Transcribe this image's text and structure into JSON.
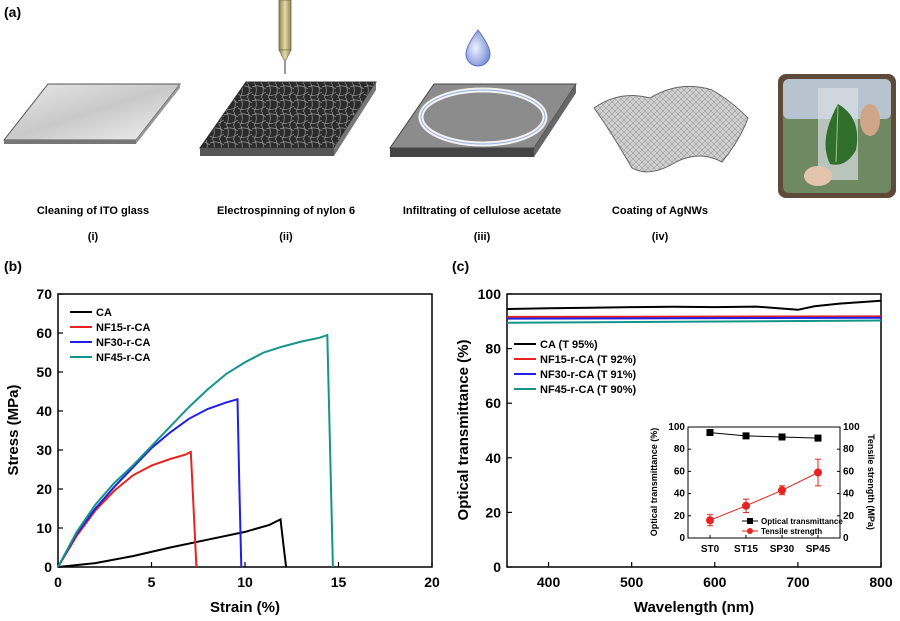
{
  "panels": {
    "a": "(a)",
    "b": "(b)",
    "c": "(c)"
  },
  "steps": [
    {
      "caption": "Cleaning of ITO glass",
      "num": "(i)"
    },
    {
      "caption": "Electrospinning of nylon 6",
      "num": "(ii)"
    },
    {
      "caption": "Infiltrating of cellulose acetate",
      "num": "(iii)"
    },
    {
      "caption": "Coating of AgNWs",
      "num": "(iv)"
    }
  ],
  "colors": {
    "CA": "#000000",
    "NF15": "#e8231f",
    "NF30": "#1f1fe8",
    "NF45": "#15948a"
  },
  "chart_data": [
    {
      "type": "line",
      "xlabel": "Strain (%)",
      "ylabel": "Stress (MPa)",
      "xlim": [
        0,
        20
      ],
      "ylim": [
        0,
        70
      ],
      "xticks": [
        0,
        5,
        10,
        15,
        20
      ],
      "yticks": [
        0,
        10,
        20,
        30,
        40,
        50,
        60,
        70
      ],
      "legend_position": "top-left",
      "series": [
        {
          "name": "CA",
          "color": "#000000",
          "x": [
            0,
            2,
            4,
            6,
            8,
            10,
            11.3,
            11.9,
            12.05,
            12.2
          ],
          "y": [
            0,
            1,
            2.8,
            5,
            7,
            9,
            10.8,
            12.2,
            6,
            0
          ]
        },
        {
          "name": "NF15-r-CA",
          "color": "#e8231f",
          "x": [
            0,
            1,
            2,
            3,
            4,
            5,
            6,
            6.8,
            7.1,
            7.25,
            7.4
          ],
          "y": [
            0,
            8,
            14.5,
            19.5,
            23.5,
            26,
            27.7,
            28.8,
            29.5,
            15,
            0
          ]
        },
        {
          "name": "NF30-r-CA",
          "color": "#1f1fe8",
          "x": [
            0,
            1,
            2,
            3,
            4,
            5,
            6,
            7,
            8,
            9,
            9.6,
            9.7,
            9.8
          ],
          "y": [
            0,
            8.5,
            15,
            20.5,
            25.5,
            30.5,
            34.5,
            38,
            40.5,
            42.2,
            43,
            20,
            0
          ]
        },
        {
          "name": "NF45-r-CA",
          "color": "#15948a",
          "x": [
            0,
            1,
            2,
            3,
            4,
            5,
            6,
            7,
            8,
            9,
            10,
            11,
            12,
            13,
            14,
            14.4,
            14.55,
            14.7
          ],
          "y": [
            0,
            9,
            16,
            21.5,
            26,
            31,
            36,
            41,
            45.5,
            49.5,
            52.5,
            55,
            56.5,
            57.8,
            58.8,
            59.5,
            30,
            0
          ]
        }
      ]
    },
    {
      "type": "line",
      "xlabel": "Wavelength (nm)",
      "ylabel": "Optical transmittance (%)",
      "xlim": [
        350,
        800
      ],
      "ylim": [
        0,
        100
      ],
      "xticks": [
        400,
        500,
        600,
        700,
        800
      ],
      "yticks": [
        0,
        20,
        40,
        60,
        80,
        100
      ],
      "legend_position": "center-left",
      "series": [
        {
          "name": "CA (T 95%)",
          "color": "#000000",
          "x": [
            350,
            400,
            450,
            500,
            550,
            600,
            650,
            700,
            720,
            750,
            800
          ],
          "y": [
            94.5,
            94.8,
            95,
            95.2,
            95.3,
            95.2,
            95.4,
            94.2,
            95.5,
            96.5,
            97.5
          ]
        },
        {
          "name": "NF15-r-CA (T 92%)",
          "color": "#e8231f",
          "x": [
            350,
            800
          ],
          "y": [
            91.6,
            91.8
          ]
        },
        {
          "name": "NF30-r-CA (T 91%)",
          "color": "#1f1fe8",
          "x": [
            350,
            800
          ],
          "y": [
            91.0,
            91.3
          ]
        },
        {
          "name": "NF45-r-CA (T 90%)",
          "color": "#15948a",
          "x": [
            350,
            800
          ],
          "y": [
            89.5,
            90.3
          ]
        }
      ]
    },
    {
      "type": "line",
      "categories": [
        "ST0",
        "ST15",
        "SP30",
        "SP45"
      ],
      "ylabel": "Optical transmittance (%)",
      "y2label": "Tensile strength (MPa)",
      "ylim": [
        0,
        100
      ],
      "y2lim": [
        0,
        100
      ],
      "yticks": [
        0,
        20,
        40,
        60,
        80,
        100
      ],
      "legend_position": "bottom-right",
      "series": [
        {
          "name": "Optical transmittance",
          "color": "#000000",
          "marker": "square",
          "axis": "left",
          "values": [
            95,
            92,
            91,
            90
          ]
        },
        {
          "name": "Tensile strength",
          "color": "#e8231f",
          "marker": "circle",
          "axis": "right",
          "values": [
            16,
            29,
            43,
            59
          ],
          "errors": [
            5,
            6,
            4,
            12
          ]
        }
      ]
    }
  ]
}
